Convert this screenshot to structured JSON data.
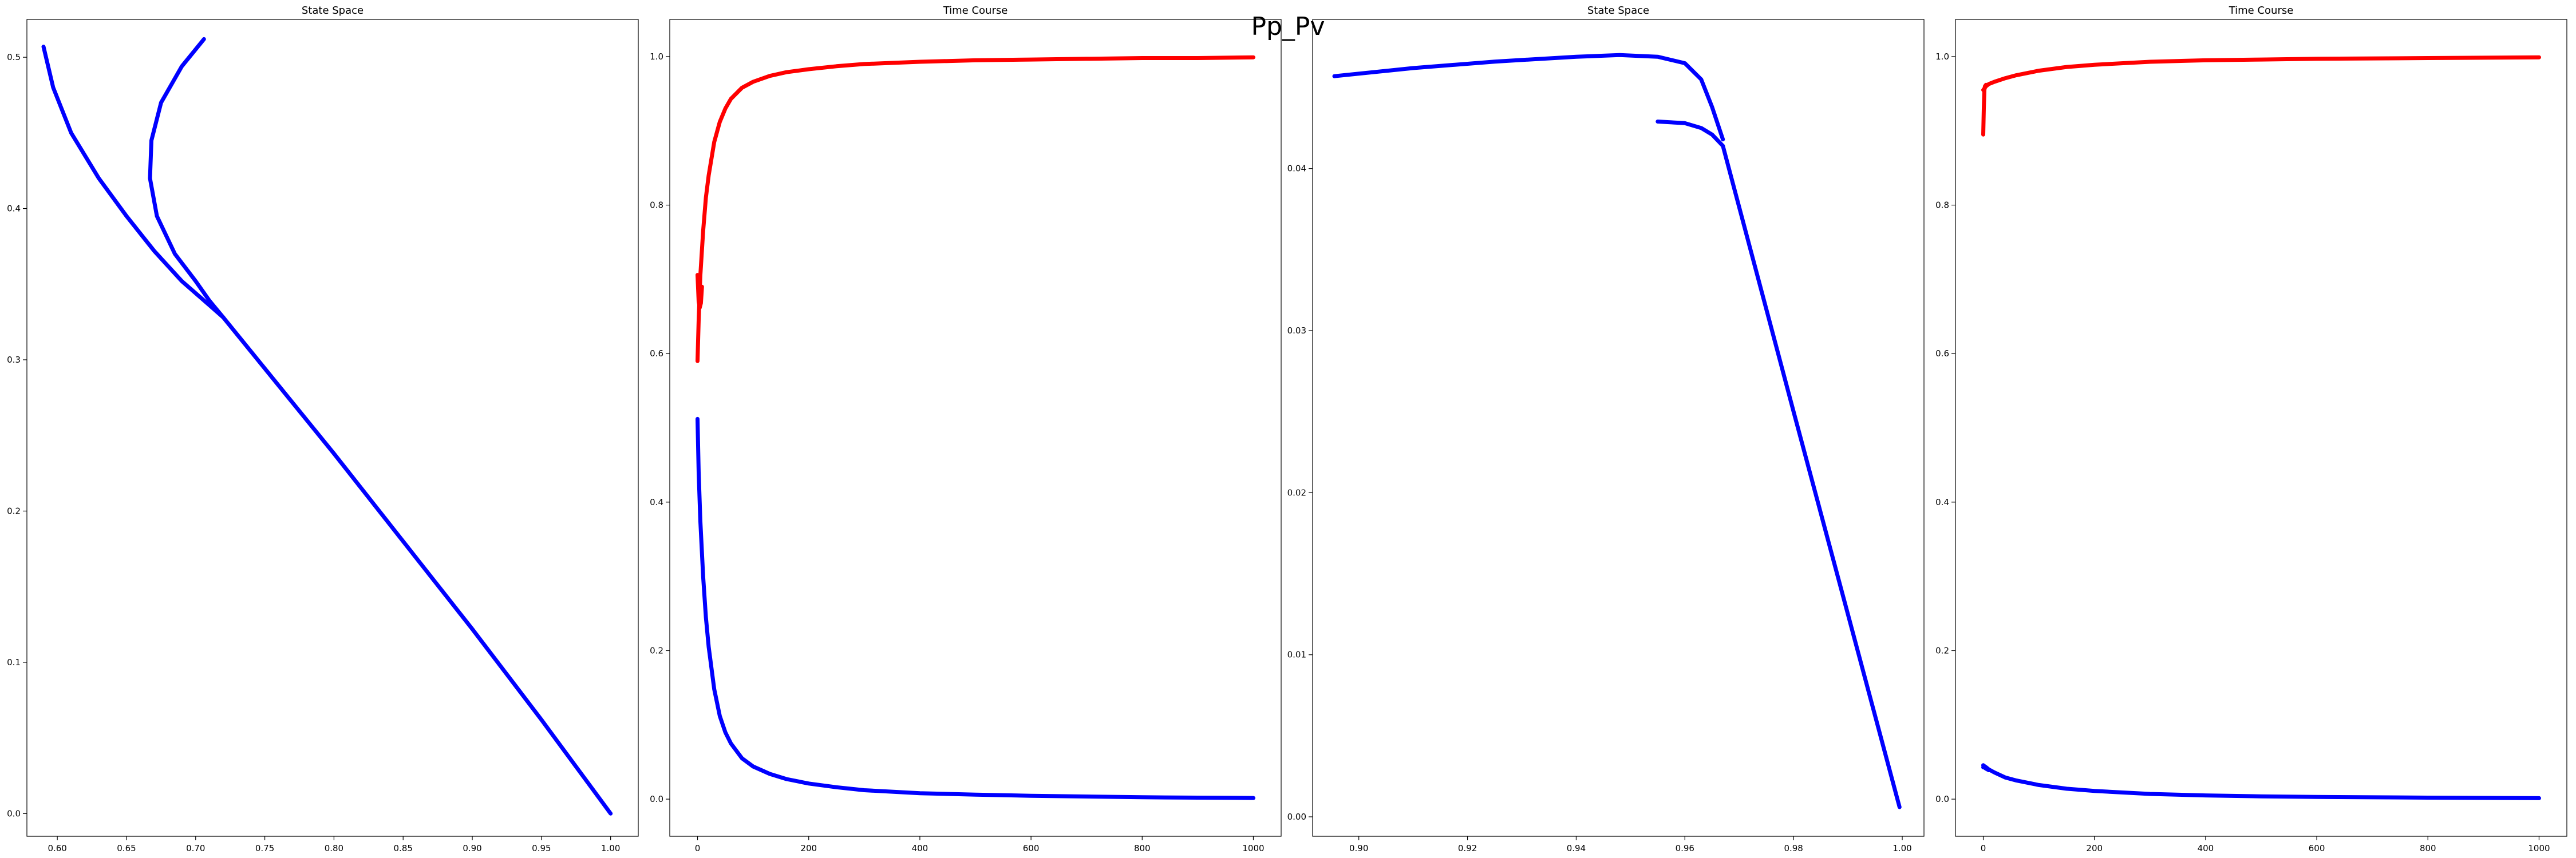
{
  "figure": {
    "suptitle": "Pp_Pv"
  },
  "colors": {
    "red": "#ff0000",
    "blue": "#0000ff"
  },
  "chart_data": [
    {
      "type": "line",
      "title": "State Space",
      "xlim": [
        0.578,
        1.02
      ],
      "ylim": [
        -0.015,
        0.525
      ],
      "xticks": [
        0.6,
        0.65,
        0.7,
        0.75,
        0.8,
        0.85,
        0.9,
        0.95,
        1.0
      ],
      "xtick_labels": [
        "0.60",
        "0.65",
        "0.70",
        "0.75",
        "0.80",
        "0.85",
        "0.90",
        "0.95",
        "1.00"
      ],
      "yticks": [
        0,
        0.1,
        0.2,
        0.3,
        0.4,
        0.5
      ],
      "ytick_labels": [
        "0.0",
        "0.1",
        "0.2",
        "0.3",
        "0.4",
        "0.5"
      ],
      "series": [
        {
          "color": "blue",
          "x": [
            0.59,
            0.597,
            0.61,
            0.63,
            0.65,
            0.67,
            0.69,
            0.71,
            0.72
          ],
          "y": [
            0.507,
            0.48,
            0.45,
            0.42,
            0.395,
            0.372,
            0.352,
            0.336,
            0.328
          ]
        },
        {
          "color": "blue",
          "x": [
            0.706,
            0.69,
            0.675,
            0.668,
            0.667,
            0.672,
            0.685,
            0.7,
            0.71,
            0.72
          ],
          "y": [
            0.512,
            0.494,
            0.47,
            0.445,
            0.42,
            0.395,
            0.37,
            0.352,
            0.339,
            0.328
          ]
        },
        {
          "color": "blue",
          "x": [
            0.72,
            0.8,
            0.9,
            0.95,
            1.0
          ],
          "y": [
            0.328,
            0.238,
            0.122,
            0.062,
            0.0
          ]
        }
      ]
    },
    {
      "type": "line",
      "title": "Time Course",
      "xlim": [
        -50,
        1050
      ],
      "ylim": [
        -0.05,
        1.05
      ],
      "xticks": [
        0,
        200,
        400,
        600,
        800,
        1000
      ],
      "xtick_labels": [
        "0",
        "200",
        "400",
        "600",
        "800",
        "1000"
      ],
      "yticks": [
        0,
        0.2,
        0.4,
        0.6,
        0.8,
        1.0
      ],
      "ytick_labels": [
        "0.0",
        "0.2",
        "0.4",
        "0.6",
        "0.8",
        "1.0"
      ],
      "series": [
        {
          "color": "red",
          "x": [
            0,
            2,
            4,
            6,
            8
          ],
          "y": [
            0.706,
            0.67,
            0.662,
            0.668,
            0.69
          ]
        },
        {
          "color": "red",
          "x": [
            0,
            2,
            5,
            10,
            15,
            20,
            30,
            40,
            50,
            60,
            80,
            100,
            130,
            160,
            200,
            250,
            300,
            400,
            500,
            600,
            700,
            800,
            900,
            1000
          ],
          "y": [
            0.59,
            0.645,
            0.705,
            0.765,
            0.81,
            0.84,
            0.885,
            0.912,
            0.93,
            0.943,
            0.958,
            0.966,
            0.974,
            0.979,
            0.983,
            0.987,
            0.99,
            0.993,
            0.995,
            0.996,
            0.997,
            0.998,
            0.998,
            0.999
          ]
        },
        {
          "color": "blue",
          "x": [
            0,
            2,
            5,
            10,
            15,
            20,
            30,
            40,
            50,
            60,
            80,
            100,
            130,
            160,
            200,
            250,
            300,
            400,
            500,
            600,
            700,
            800,
            900,
            1000
          ],
          "y": [
            0.512,
            0.44,
            0.375,
            0.3,
            0.245,
            0.205,
            0.148,
            0.112,
            0.09,
            0.075,
            0.055,
            0.044,
            0.034,
            0.027,
            0.021,
            0.016,
            0.012,
            0.008,
            0.006,
            0.0045,
            0.0035,
            0.0025,
            0.002,
            0.0015
          ]
        }
      ]
    },
    {
      "type": "line",
      "title": "State Space",
      "xlim": [
        0.8915,
        1.004
      ],
      "ylim": [
        -0.0012,
        0.0492
      ],
      "xticks": [
        0.9,
        0.92,
        0.94,
        0.96,
        0.98,
        1.0
      ],
      "xtick_labels": [
        "0.90",
        "0.92",
        "0.94",
        "0.96",
        "0.98",
        "1.00"
      ],
      "yticks": [
        0,
        0.01,
        0.02,
        0.03,
        0.04
      ],
      "ytick_labels": [
        "0.00",
        "0.01",
        "0.02",
        "0.03",
        "0.04"
      ],
      "series": [
        {
          "color": "blue",
          "x": [
            0.8955,
            0.91,
            0.925,
            0.94,
            0.948,
            0.955,
            0.96,
            0.963,
            0.965,
            0.967
          ],
          "y": [
            0.0457,
            0.0462,
            0.0466,
            0.0469,
            0.047,
            0.0469,
            0.0465,
            0.0455,
            0.0438,
            0.0418
          ]
        },
        {
          "color": "blue",
          "x": [
            0.955,
            0.96,
            0.963,
            0.965,
            0.967
          ],
          "y": [
            0.0429,
            0.0428,
            0.0425,
            0.0421,
            0.0414
          ]
        },
        {
          "color": "blue",
          "x": [
            0.967,
            0.98,
            0.99,
            0.9995
          ],
          "y": [
            0.0414,
            0.025,
            0.0125,
            0.0006
          ]
        }
      ]
    },
    {
      "type": "line",
      "title": "Time Course",
      "xlim": [
        -50,
        1050
      ],
      "ylim": [
        -0.05,
        1.05
      ],
      "xticks": [
        0,
        200,
        400,
        600,
        800,
        1000
      ],
      "xtick_labels": [
        "0",
        "200",
        "400",
        "600",
        "800",
        "1000"
      ],
      "yticks": [
        0,
        0.2,
        0.4,
        0.6,
        0.8,
        1.0
      ],
      "ytick_labels": [
        "0.0",
        "0.2",
        "0.4",
        "0.6",
        "0.8",
        "1.0"
      ],
      "series": [
        {
          "color": "red",
          "x": [
            0,
            1,
            2,
            3,
            5
          ],
          "y": [
            0.895,
            0.93,
            0.955,
            0.96,
            0.962
          ]
        },
        {
          "color": "red",
          "x": [
            0,
            5,
            10,
            20,
            40,
            60,
            100,
            150,
            200,
            300,
            400,
            500,
            600,
            800,
            1000
          ],
          "y": [
            0.955,
            0.96,
            0.963,
            0.966,
            0.971,
            0.975,
            0.981,
            0.986,
            0.989,
            0.993,
            0.995,
            0.996,
            0.997,
            0.998,
            0.999
          ]
        },
        {
          "color": "blue",
          "x": [
            0,
            5,
            10,
            20,
            40,
            60,
            100,
            150,
            200,
            300,
            400,
            500,
            600,
            800,
            1000
          ],
          "y": [
            0.0457,
            0.043,
            0.04,
            0.036,
            0.029,
            0.025,
            0.019,
            0.014,
            0.011,
            0.007,
            0.005,
            0.0038,
            0.003,
            0.002,
            0.0013
          ]
        },
        {
          "color": "blue",
          "x": [
            0,
            2,
            5,
            10
          ],
          "y": [
            0.0429,
            0.0425,
            0.041,
            0.039
          ]
        }
      ]
    }
  ]
}
